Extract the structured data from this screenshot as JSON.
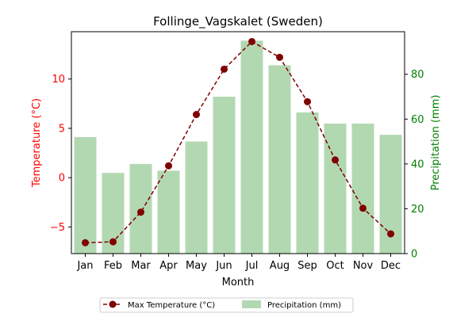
{
  "chart_data": {
    "type": "bar+line",
    "title": "Follinge_Vagskalet (Sweden)",
    "xlabel": "Month",
    "categories": [
      "Jan",
      "Feb",
      "Mar",
      "Apr",
      "May",
      "Jun",
      "Jul",
      "Aug",
      "Sep",
      "Oct",
      "Nov",
      "Dec"
    ],
    "left_axis": {
      "label": "Temperature (°C)",
      "range": [
        -7.7,
        14.8
      ],
      "ticks": [
        -5,
        0,
        5,
        10
      ],
      "color": "#ff0000"
    },
    "right_axis": {
      "label": "Precipitation (mm)",
      "range": [
        0,
        99
      ],
      "ticks": [
        0,
        20,
        40,
        60,
        80
      ],
      "color": "#008000"
    },
    "series": [
      {
        "name": "Max Temperature (°C)",
        "type": "line",
        "axis": "left",
        "color": "#800000",
        "values": [
          -6.6,
          -6.5,
          -3.5,
          1.2,
          6.4,
          11.0,
          13.8,
          12.2,
          7.7,
          1.8,
          -3.1,
          -5.7
        ]
      },
      {
        "name": "Precipitation (mm)",
        "type": "bar",
        "axis": "right",
        "color": "#b2d8b2",
        "values": [
          52,
          36,
          40,
          37,
          50,
          70,
          95,
          84,
          63,
          58,
          58,
          53
        ]
      }
    ],
    "grid": false,
    "legend_position": "below"
  }
}
